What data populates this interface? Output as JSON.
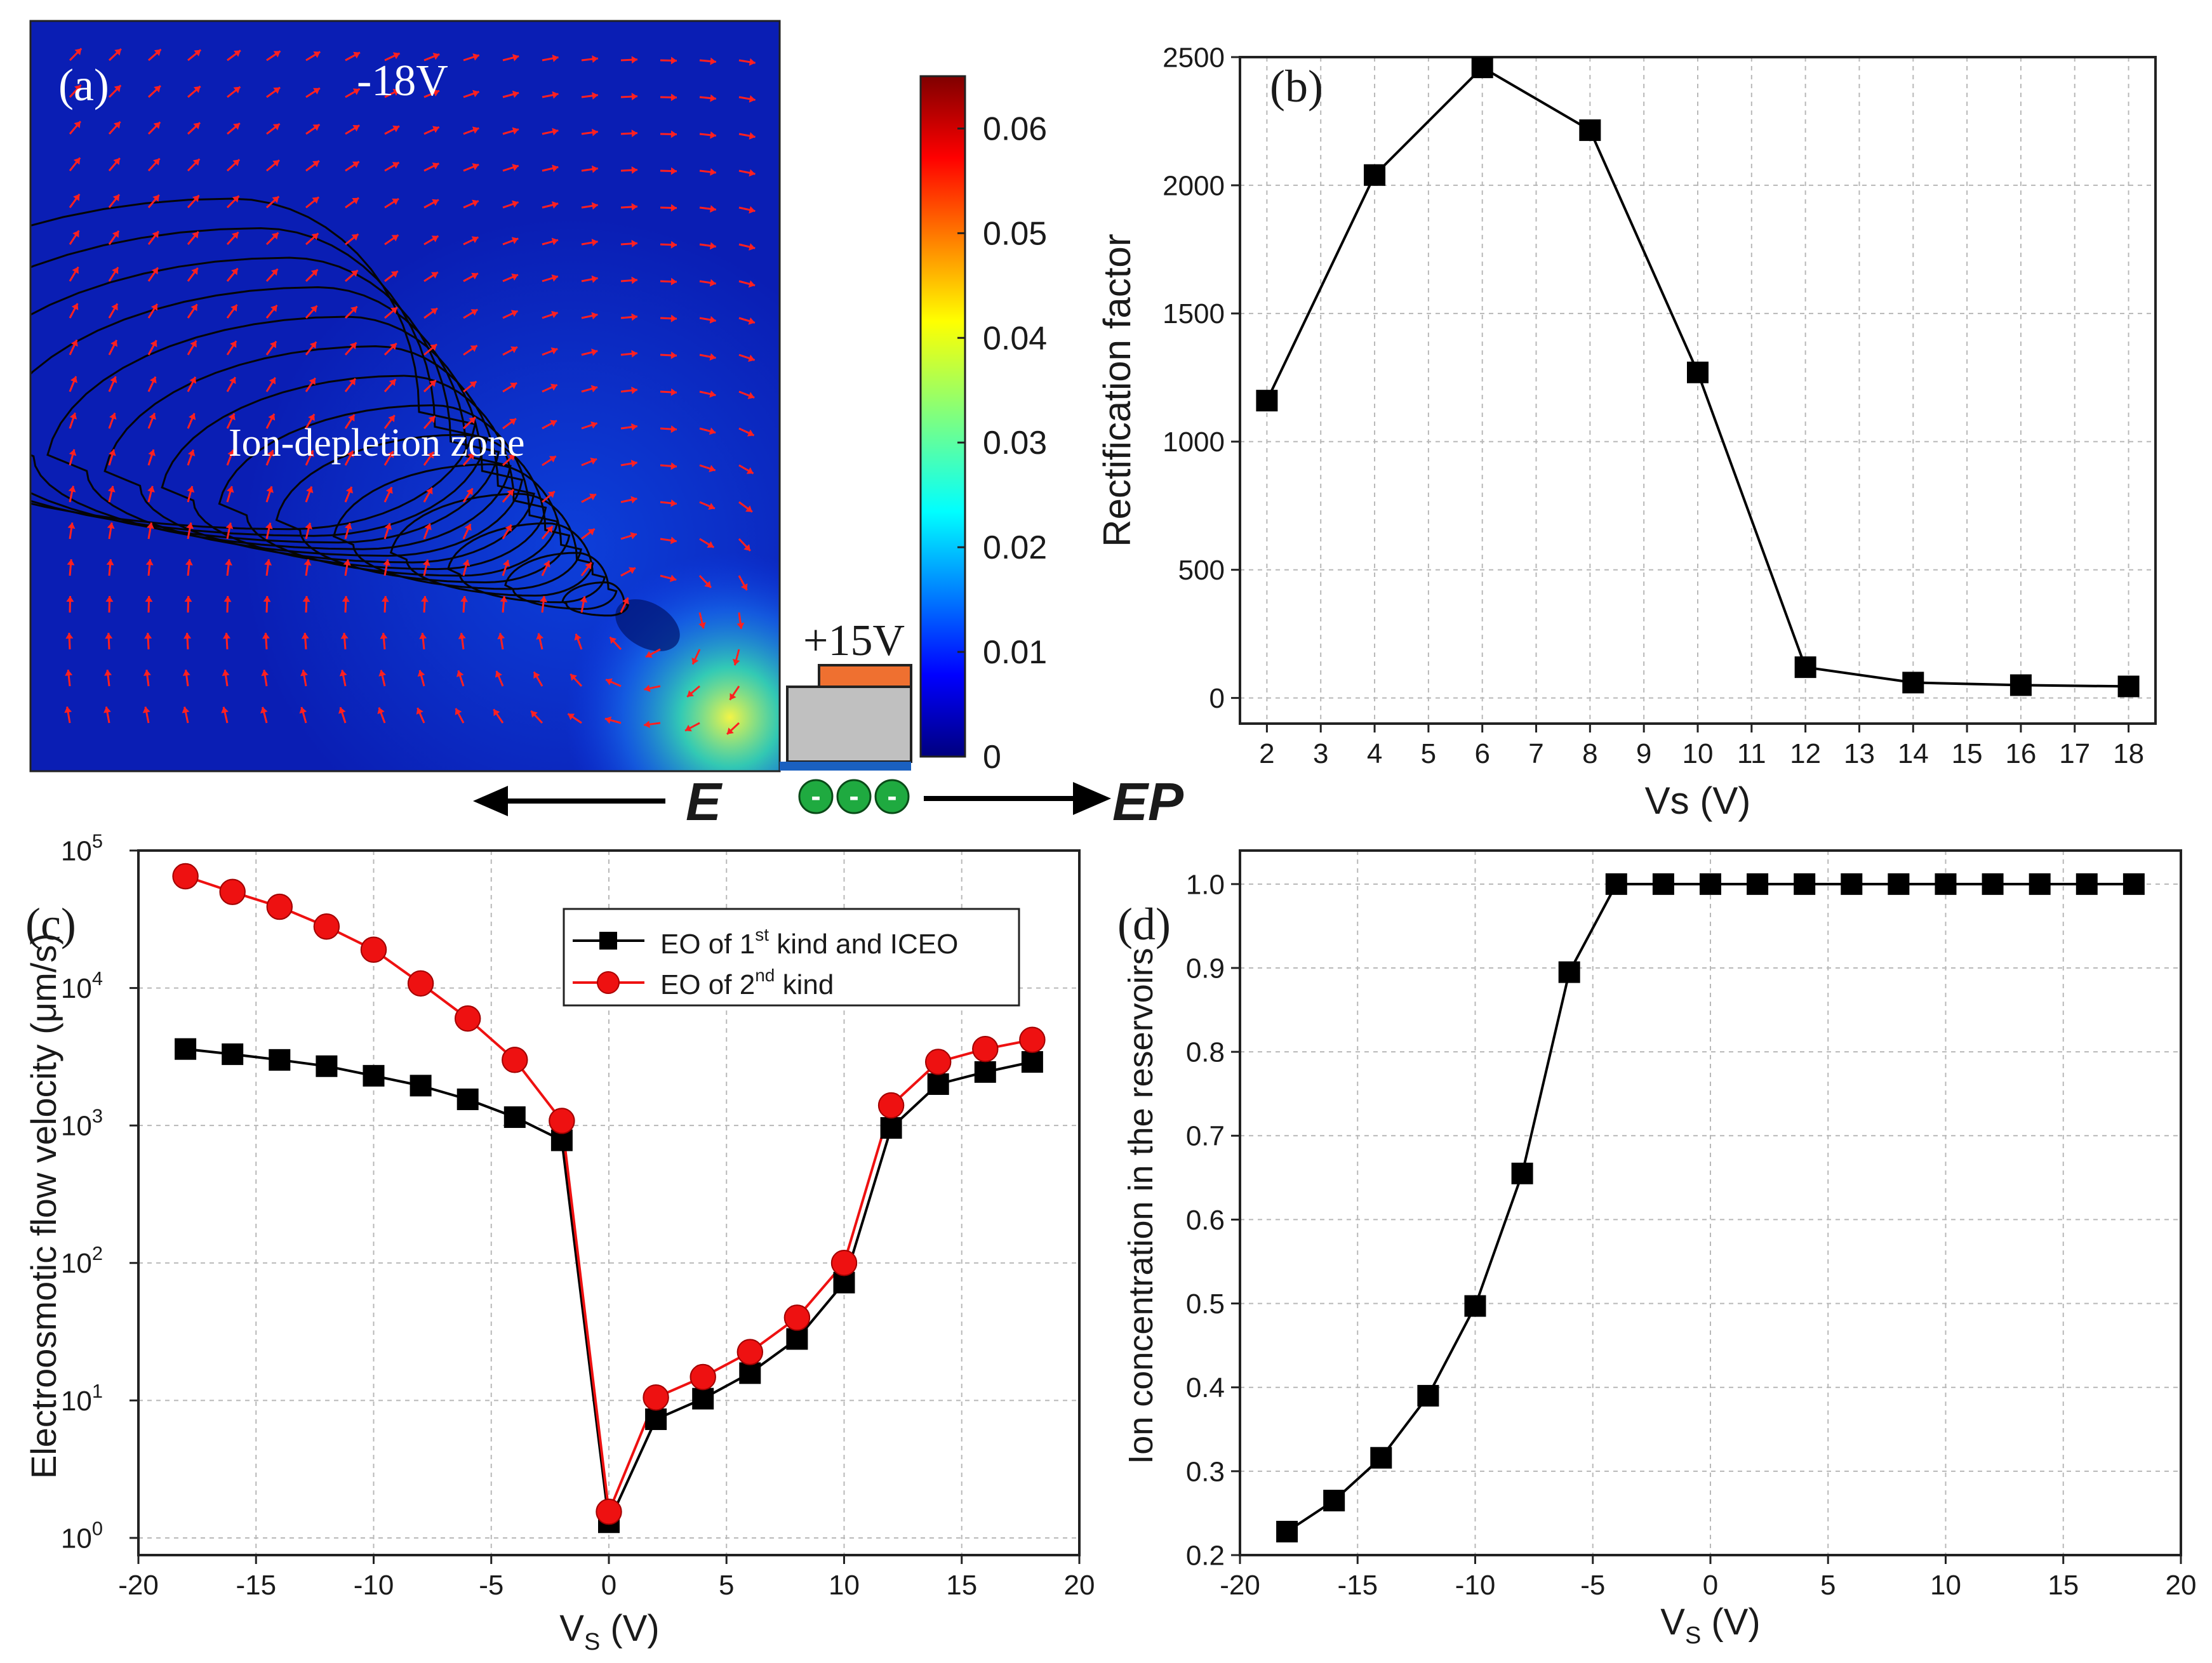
{
  "panel_a": {
    "label": "(a)",
    "voltage_top": "-18V",
    "voltage_electrode": "+15V",
    "zone_label": "Ion-depletion zone",
    "colorbar_ticks": [
      "0",
      "0.01",
      "0.02",
      "0.03",
      "0.04",
      "0.05",
      "0.06"
    ],
    "colorbar_range": [
      0,
      0.065
    ],
    "e_label": "E",
    "ep_label": "EP",
    "charge_symbols": [
      "-",
      "-",
      "-"
    ]
  },
  "chart_data": [
    {
      "id": "b",
      "label": "(b)",
      "type": "line",
      "x": [
        2,
        4,
        6,
        8,
        10,
        12,
        14,
        16,
        18
      ],
      "values": [
        1160,
        2040,
        2460,
        2215,
        1270,
        120,
        60,
        50,
        45
      ],
      "xlabel": "Vs (V)",
      "ylabel": "Rectification factor",
      "xlim": [
        1.5,
        18.5
      ],
      "ylim": [
        -100,
        2500
      ],
      "xticks": [
        2,
        3,
        4,
        5,
        6,
        7,
        8,
        9,
        10,
        11,
        12,
        13,
        14,
        15,
        16,
        17,
        18
      ],
      "yticks": [
        0,
        500,
        1000,
        1500,
        2000,
        2500
      ],
      "marker": "square",
      "grid": true
    },
    {
      "id": "c",
      "label": "(c)",
      "type": "line",
      "yscale": "log",
      "x": [
        -18,
        -16,
        -14,
        -12,
        -10,
        -8,
        -6,
        -4,
        -2,
        0,
        2,
        4,
        6,
        8,
        10,
        12,
        14,
        16,
        18
      ],
      "series": [
        {
          "name": "EO of 1st kind and ICEO",
          "name_parts": [
            "EO of 1",
            "st",
            " kind and ICEO"
          ],
          "color": "#000000",
          "marker": "square",
          "values": [
            3600,
            3300,
            3000,
            2700,
            2300,
            1950,
            1550,
            1150,
            780,
            1.3,
            7.3,
            10.3,
            15.8,
            28,
            72,
            960,
            2000,
            2450,
            2900
          ]
        },
        {
          "name": "EO of 2nd kind",
          "name_parts": [
            "EO of 2",
            "nd",
            " kind"
          ],
          "color": "#ee1111",
          "marker": "circle",
          "values": [
            65000,
            50000,
            39000,
            28000,
            19000,
            10800,
            6000,
            3000,
            1080,
            1.55,
            10.5,
            14.8,
            22.5,
            40,
            100,
            1400,
            2900,
            3600,
            4200
          ]
        }
      ],
      "xlabel": "V",
      "xlabel_sub": "S",
      "xlabel_unit": " (V)",
      "ylabel": "Electroosmotic flow velocity (μm/s)",
      "xlim": [
        -20,
        20
      ],
      "ylim": [
        0.75,
        100000
      ],
      "xticks": [
        -20,
        -15,
        -10,
        -5,
        0,
        5,
        10,
        15,
        20
      ],
      "yticks": [
        1,
        10,
        100,
        1000,
        10000,
        100000
      ],
      "ytick_exponents": [
        "0",
        "1",
        "2",
        "3",
        "4",
        "5"
      ],
      "ytick_base": "10",
      "legend_position": "top-right",
      "grid": true
    },
    {
      "id": "d",
      "label": "(d)",
      "type": "line",
      "x": [
        -18,
        -16,
        -14,
        -12,
        -10,
        -8,
        -6,
        -4,
        -2,
        0,
        2,
        4,
        6,
        8,
        10,
        12,
        14,
        16,
        18
      ],
      "values": [
        0.228,
        0.265,
        0.316,
        0.39,
        0.497,
        0.655,
        0.895,
        1.0,
        1.0,
        1.0,
        1.0,
        1.0,
        1.0,
        1.0,
        1.0,
        1.0,
        1.0,
        1.0,
        1.0
      ],
      "xlabel": "V",
      "xlabel_sub": "S",
      "xlabel_unit": " (V)",
      "ylabel": "Ion concentration in the reservoirs",
      "xlim": [
        -20,
        20
      ],
      "ylim": [
        0.2,
        1.04
      ],
      "xticks": [
        -20,
        -15,
        -10,
        -5,
        0,
        5,
        10,
        15,
        20
      ],
      "yticks": [
        "0.2",
        "0.3",
        "0.4",
        "0.5",
        "0.6",
        "0.7",
        "0.8",
        "0.9",
        "1.0"
      ],
      "marker": "square",
      "grid": true
    }
  ]
}
